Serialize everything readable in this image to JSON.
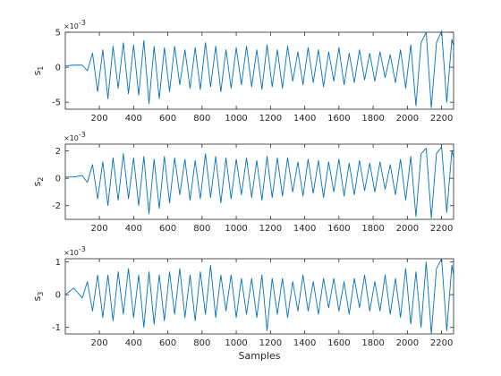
{
  "chart_data": [
    {
      "type": "line",
      "ylabel": "s",
      "ylabel_sub": "1",
      "multiplier_base": "×10",
      "multiplier_exp": "-3",
      "xlim": [
        1,
        2270
      ],
      "ylim": [
        -6,
        5
      ],
      "yticks": [
        -5,
        0,
        5
      ],
      "xticks": [
        200,
        400,
        600,
        800,
        1000,
        1200,
        1400,
        1600,
        1800,
        2000,
        2200
      ],
      "xlabel": "",
      "line_color": "#0072BD",
      "series": [
        {
          "x": [
            1,
            50,
            100,
            130,
            160,
            190,
            220,
            250,
            280,
            310,
            340,
            370,
            400,
            430,
            460,
            490,
            520,
            550,
            580,
            610,
            640,
            670,
            700,
            730,
            760,
            790,
            820,
            850,
            880,
            910,
            940,
            970,
            1000,
            1030,
            1060,
            1090,
            1120,
            1150,
            1180,
            1210,
            1240,
            1270,
            1300,
            1330,
            1360,
            1390,
            1420,
            1450,
            1480,
            1510,
            1540,
            1570,
            1600,
            1630,
            1660,
            1690,
            1720,
            1750,
            1780,
            1810,
            1840,
            1870,
            1900,
            1930,
            1960,
            1990,
            2020,
            2050,
            2080,
            2110,
            2140,
            2170,
            2200,
            2230,
            2260,
            2270
          ],
          "values": [
            0.2,
            0.3,
            0.3,
            -0.5,
            2.0,
            -3.5,
            2.5,
            -4.5,
            3.0,
            -3.0,
            3.5,
            -3.8,
            3.2,
            -4.0,
            3.8,
            -5.2,
            3.0,
            -4.5,
            2.8,
            -3.5,
            3.0,
            -2.5,
            2.5,
            -3.0,
            2.8,
            -3.2,
            3.5,
            -2.8,
            3.0,
            -3.5,
            2.5,
            -3.0,
            2.8,
            -2.5,
            3.0,
            -2.8,
            2.5,
            -3.2,
            3.2,
            -2.8,
            2.5,
            -3.0,
            3.0,
            -2.0,
            2.2,
            -2.5,
            2.8,
            -2.2,
            2.5,
            -2.8,
            2.2,
            -2.0,
            2.8,
            -2.5,
            2.0,
            -2.2,
            2.5,
            -1.8,
            2.0,
            -2.0,
            2.2,
            -1.5,
            1.8,
            -2.2,
            2.5,
            -3.0,
            3.2,
            -5.5,
            3.5,
            5.0,
            -5.8,
            3.5,
            5.2,
            -5.0,
            4.0,
            3.0
          ]
        }
      ]
    },
    {
      "type": "line",
      "ylabel": "s",
      "ylabel_sub": "2",
      "multiplier_base": "×10",
      "multiplier_exp": "-3",
      "xlim": [
        1,
        2270
      ],
      "ylim": [
        -3,
        2.5
      ],
      "yticks": [
        -2,
        0,
        2
      ],
      "xticks": [
        200,
        400,
        600,
        800,
        1000,
        1200,
        1400,
        1600,
        1800,
        2000,
        2200
      ],
      "xlabel": "",
      "line_color": "#0072BD",
      "series": [
        {
          "x": [
            1,
            50,
            100,
            130,
            160,
            190,
            220,
            250,
            280,
            310,
            340,
            370,
            400,
            430,
            460,
            490,
            520,
            550,
            580,
            610,
            640,
            670,
            700,
            730,
            760,
            790,
            820,
            850,
            880,
            910,
            940,
            970,
            1000,
            1030,
            1060,
            1090,
            1120,
            1150,
            1180,
            1210,
            1240,
            1270,
            1300,
            1330,
            1360,
            1390,
            1420,
            1450,
            1480,
            1510,
            1540,
            1570,
            1600,
            1630,
            1660,
            1690,
            1720,
            1750,
            1780,
            1810,
            1840,
            1870,
            1900,
            1930,
            1960,
            1990,
            2020,
            2050,
            2080,
            2110,
            2140,
            2170,
            2200,
            2230,
            2260,
            2270
          ],
          "values": [
            0.1,
            0.1,
            0.2,
            -0.3,
            1.0,
            -1.5,
            1.2,
            -2.0,
            1.5,
            -1.6,
            1.8,
            -1.5,
            1.5,
            -2.0,
            1.6,
            -2.6,
            1.4,
            -2.2,
            1.6,
            -1.8,
            1.5,
            -1.2,
            1.4,
            -1.6,
            1.3,
            -1.5,
            1.8,
            -1.4,
            1.6,
            -1.8,
            1.5,
            -1.5,
            1.4,
            -1.2,
            1.5,
            -1.4,
            1.3,
            -1.6,
            1.6,
            -1.4,
            1.5,
            -1.3,
            1.5,
            -1.0,
            1.2,
            -1.3,
            1.4,
            -1.1,
            1.3,
            -1.4,
            1.2,
            -1.0,
            1.4,
            -1.3,
            1.1,
            -1.2,
            1.3,
            -0.9,
            1.1,
            -1.0,
            1.2,
            -0.8,
            1.0,
            -1.2,
            1.4,
            -1.6,
            1.6,
            -2.8,
            1.8,
            2.2,
            -2.9,
            1.8,
            2.3,
            -2.5,
            2.0,
            1.5
          ]
        }
      ]
    },
    {
      "type": "line",
      "ylabel": "s",
      "ylabel_sub": "3",
      "multiplier_base": "×10",
      "multiplier_exp": "-3",
      "xlim": [
        1,
        2270
      ],
      "ylim": [
        -1.2,
        1.1
      ],
      "yticks": [
        -1,
        0,
        1
      ],
      "xticks": [
        200,
        400,
        600,
        800,
        1000,
        1200,
        1400,
        1600,
        1800,
        2000,
        2200
      ],
      "xlabel": "Samples",
      "line_color": "#0072BD",
      "series": [
        {
          "x": [
            1,
            50,
            100,
            130,
            160,
            190,
            220,
            250,
            280,
            310,
            340,
            370,
            400,
            430,
            460,
            490,
            520,
            550,
            580,
            610,
            640,
            670,
            700,
            730,
            760,
            790,
            820,
            850,
            880,
            910,
            940,
            970,
            1000,
            1030,
            1060,
            1090,
            1120,
            1150,
            1180,
            1210,
            1240,
            1270,
            1300,
            1330,
            1360,
            1390,
            1420,
            1450,
            1480,
            1510,
            1540,
            1570,
            1600,
            1630,
            1660,
            1690,
            1720,
            1750,
            1780,
            1810,
            1840,
            1870,
            1900,
            1930,
            1960,
            1990,
            2020,
            2050,
            2080,
            2110,
            2140,
            2170,
            2200,
            2230,
            2260,
            2270
          ],
          "values": [
            0.0,
            0.2,
            -0.1,
            0.4,
            -0.5,
            0.6,
            -0.7,
            0.6,
            -0.8,
            0.7,
            -0.6,
            0.8,
            -0.7,
            0.6,
            -1.0,
            0.7,
            -0.9,
            0.6,
            -0.8,
            0.7,
            -0.6,
            0.8,
            -0.7,
            0.6,
            -0.8,
            0.7,
            -0.6,
            0.9,
            -0.7,
            0.6,
            -0.5,
            0.6,
            -0.7,
            0.5,
            -0.6,
            0.5,
            -0.7,
            0.6,
            -1.1,
            0.5,
            -0.6,
            0.5,
            -0.7,
            0.4,
            -0.5,
            0.6,
            -0.5,
            0.4,
            -0.6,
            0.5,
            -0.4,
            0.5,
            -0.5,
            0.4,
            -0.6,
            0.5,
            -0.4,
            0.6,
            -0.5,
            0.4,
            -0.5,
            0.6,
            -0.6,
            0.5,
            -0.7,
            0.8,
            -0.9,
            0.7,
            -1.0,
            1.0,
            -1.2,
            0.8,
            1.1,
            -1.1,
            0.9,
            0.6
          ]
        }
      ]
    }
  ]
}
